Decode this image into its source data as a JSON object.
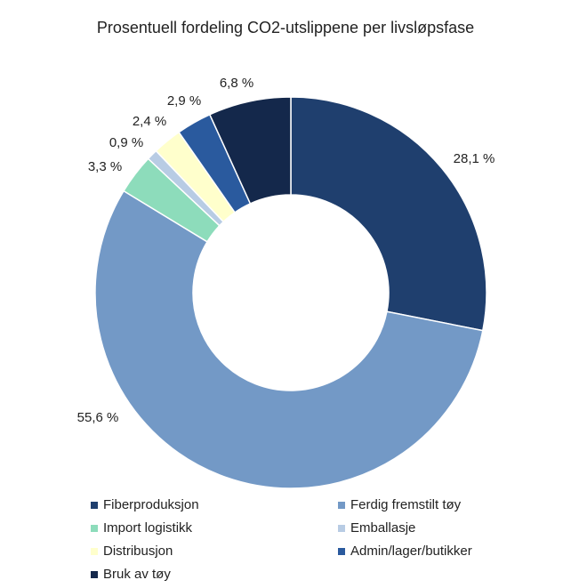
{
  "chart_data": {
    "type": "donut",
    "title": "Prosentuell fordeling CO2-utslippene per livsløpsfase",
    "categories": [
      "Fiberproduksjon",
      "Ferdig fremstilt tøy",
      "Import logistikk",
      "Emballasje",
      "Distribusjon",
      "Admin/lager/butikker",
      "Bruk av tøy"
    ],
    "values": [
      28.1,
      55.6,
      3.3,
      0.9,
      2.4,
      2.9,
      6.8
    ],
    "value_labels": [
      "28,1 %",
      "55,6 %",
      "3,3 %",
      "0,9 %",
      "2,4 %",
      "2,9 %",
      "6,8 %"
    ],
    "colors": [
      "#1f3f6e",
      "#7399c6",
      "#8ddcbb",
      "#b8cce4",
      "#ffffcc",
      "#2a5a9e",
      "#14284b"
    ]
  }
}
